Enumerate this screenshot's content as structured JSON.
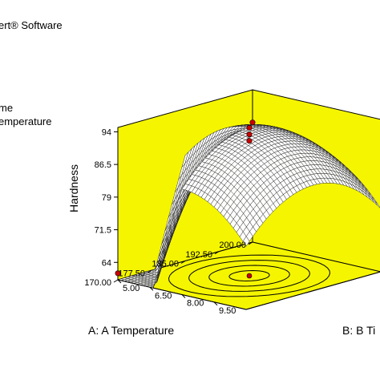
{
  "header": {
    "software_text": "ert® Software",
    "factor_line_1": "me",
    "factor_line_2": "emperature"
  },
  "colors": {
    "plane": "#f5f500",
    "plane_edge": "#000000",
    "mesh": "#1a1a1a",
    "surface_fill": "#ffffff",
    "design_point": "#cc0000",
    "contour": "#000000"
  },
  "chart_data": {
    "type": "surface",
    "title": "",
    "zlabel": "Hardness",
    "xlabel": "A: A Temperature",
    "ylabel": "B: B Ti",
    "x_ticks": [
      "170.00",
      "177.50",
      "185.00",
      "192.50",
      "200.00"
    ],
    "y_ticks": [
      "5.00",
      "6.50",
      "8.00",
      "9.50"
    ],
    "z_ticks": [
      "64",
      "71.5",
      "79",
      "86.5",
      "94"
    ],
    "xlim": [
      170,
      200
    ],
    "ylim": [
      5,
      11
    ],
    "zlim": [
      60,
      95
    ],
    "surface": {
      "model": "quadratic",
      "center": {
        "A": 185,
        "B": 8,
        "Hardness": 94
      },
      "corner_values": [
        {
          "A": 170,
          "B": 5,
          "Hardness": 61.5
        },
        {
          "A": 200,
          "B": 5,
          "Hardness": 87.5
        },
        {
          "A": 170,
          "B": 11,
          "Hardness": 87.5
        },
        {
          "A": 200,
          "B": 11,
          "Hardness": 87.5
        }
      ],
      "grid_divisions": 40
    },
    "design_points": [
      {
        "A": 185,
        "B": 8,
        "Hardness": 94
      },
      {
        "A": 185,
        "B": 8,
        "Hardness": 92.5
      },
      {
        "A": 185,
        "B": 8,
        "Hardness": 91
      },
      {
        "A": 200,
        "B": 5,
        "Hardness": 87.5
      },
      {
        "A": 170,
        "B": 5,
        "Hardness": 61.5
      }
    ],
    "contour_count": 4,
    "grid": false,
    "legend": "none"
  }
}
